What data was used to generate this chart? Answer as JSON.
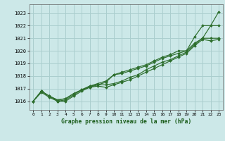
{
  "title": "Graphe pression niveau de la mer (hPa)",
  "bg_color": "#cce8e8",
  "grid_color": "#aacece",
  "line_color": "#2d6e2d",
  "marker_color": "#2d6e2d",
  "xlim": [
    -0.5,
    23.5
  ],
  "ylim": [
    1015.3,
    1023.7
  ],
  "yticks": [
    1016,
    1017,
    1018,
    1019,
    1020,
    1021,
    1022,
    1023
  ],
  "xticks": [
    0,
    1,
    2,
    3,
    4,
    5,
    6,
    7,
    8,
    9,
    10,
    11,
    12,
    13,
    14,
    15,
    16,
    17,
    18,
    19,
    20,
    21,
    22,
    23
  ],
  "series1": [
    1016.0,
    1016.8,
    1016.4,
    1016.1,
    1016.2,
    1016.6,
    1016.9,
    1017.2,
    1017.3,
    1017.5,
    1018.1,
    1018.2,
    1018.4,
    1018.6,
    1018.8,
    1019.1,
    1019.4,
    1019.6,
    1019.8,
    1020.0,
    1021.1,
    1022.0,
    1022.0,
    1023.1
  ],
  "series2": [
    1016.0,
    1016.8,
    1016.4,
    1016.1,
    1016.2,
    1016.6,
    1016.9,
    1017.2,
    1017.4,
    1017.6,
    1018.1,
    1018.3,
    1018.5,
    1018.7,
    1018.9,
    1019.2,
    1019.5,
    1019.7,
    1020.0,
    1020.0,
    1020.6,
    1021.0,
    1022.0,
    1022.0
  ],
  "series3": [
    1016.0,
    1016.8,
    1016.4,
    1016.0,
    1016.1,
    1016.5,
    1016.9,
    1017.1,
    1017.3,
    1017.3,
    1017.4,
    1017.6,
    1017.9,
    1018.1,
    1018.5,
    1018.8,
    1019.1,
    1019.3,
    1019.6,
    1019.9,
    1020.5,
    1021.0,
    1021.0,
    1021.0
  ],
  "series4": [
    1016.0,
    1016.7,
    1016.3,
    1016.0,
    1016.0,
    1016.4,
    1016.8,
    1017.1,
    1017.2,
    1017.1,
    1017.3,
    1017.5,
    1017.7,
    1018.0,
    1018.3,
    1018.6,
    1018.9,
    1019.2,
    1019.5,
    1019.8,
    1020.4,
    1020.9,
    1020.8,
    1020.9
  ]
}
